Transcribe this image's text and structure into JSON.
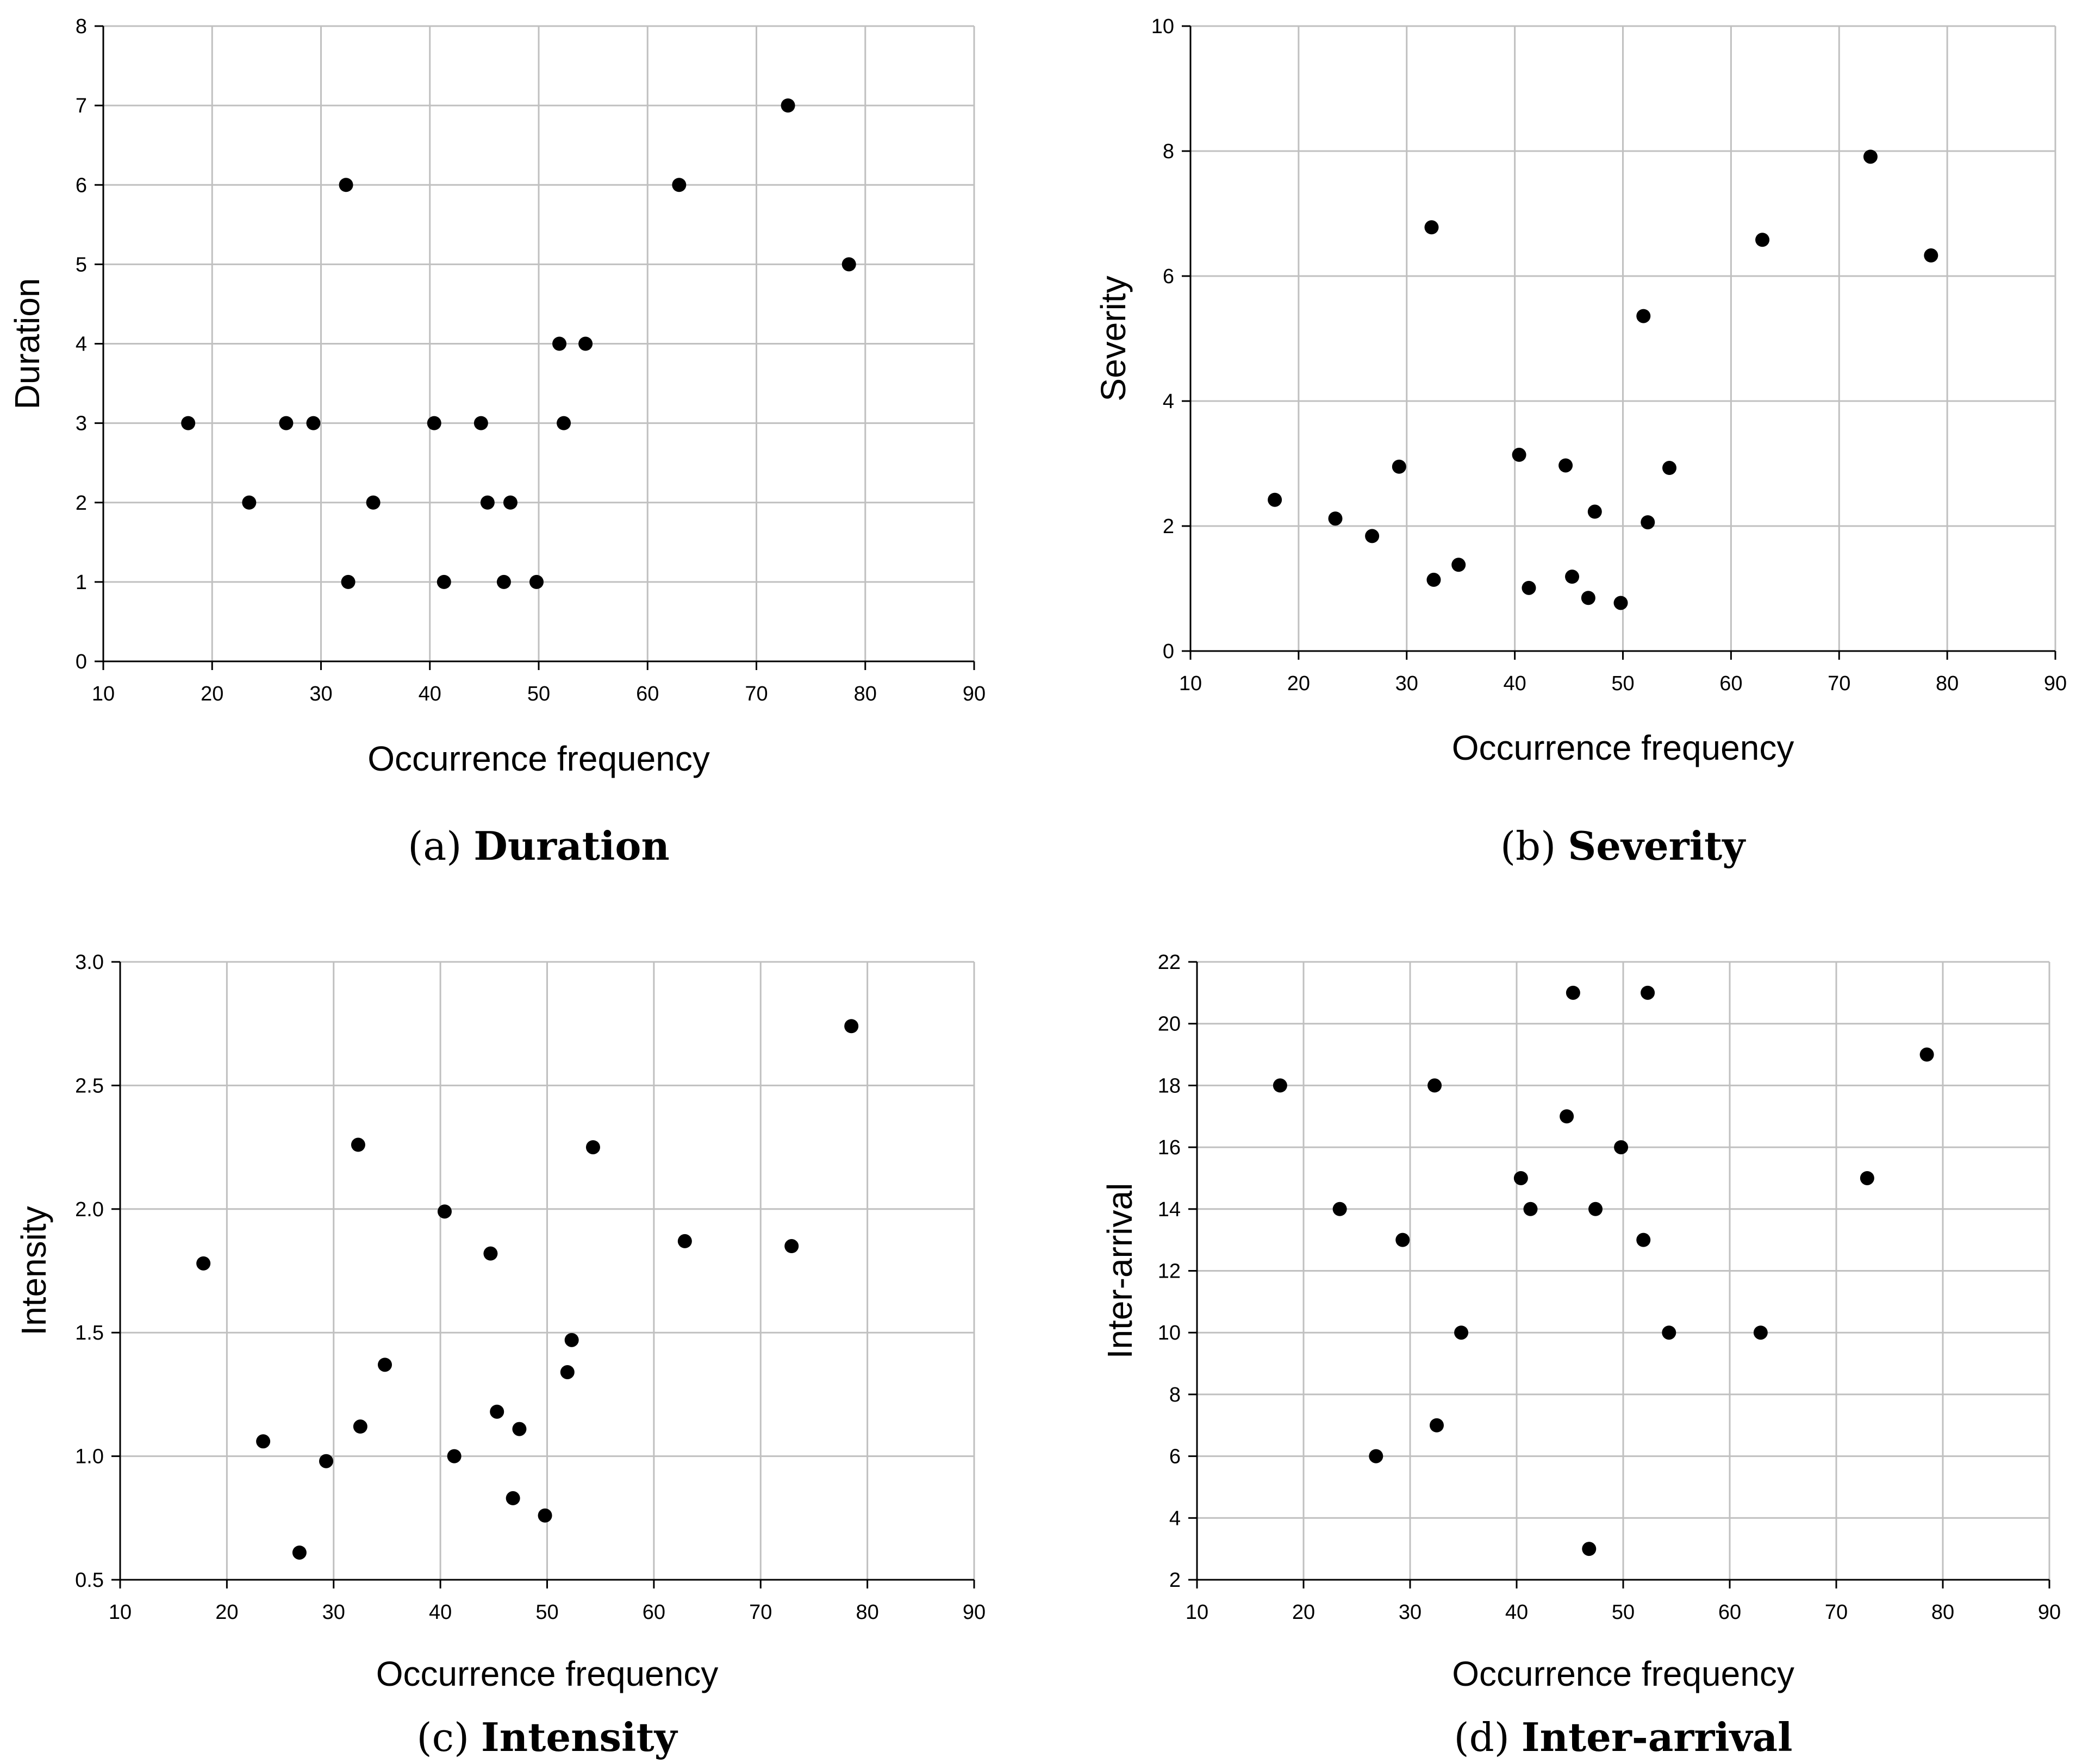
{
  "chart_data": [
    {
      "type": "scatter",
      "caption_label": "(a)",
      "caption_title": "Duration",
      "xlabel": "Occurrence frequency",
      "ylabel": "Duration",
      "xlim": [
        10,
        90
      ],
      "ylim": [
        0,
        8
      ],
      "xticks": [
        "10",
        "20",
        "30",
        "40",
        "50",
        "60",
        "70",
        "80",
        "90"
      ],
      "yticks": [
        "0",
        "1",
        "2",
        "3",
        "4",
        "5",
        "6",
        "7",
        "8"
      ],
      "grid": true,
      "marker_color": "#000000",
      "points": [
        {
          "x": 17.8,
          "y": 3
        },
        {
          "x": 23.4,
          "y": 2
        },
        {
          "x": 26.8,
          "y": 3
        },
        {
          "x": 29.3,
          "y": 3
        },
        {
          "x": 32.3,
          "y": 6
        },
        {
          "x": 32.5,
          "y": 1
        },
        {
          "x": 34.8,
          "y": 2
        },
        {
          "x": 40.4,
          "y": 3
        },
        {
          "x": 41.3,
          "y": 1
        },
        {
          "x": 44.7,
          "y": 3
        },
        {
          "x": 45.3,
          "y": 2
        },
        {
          "x": 46.8,
          "y": 1
        },
        {
          "x": 47.4,
          "y": 2
        },
        {
          "x": 49.8,
          "y": 1
        },
        {
          "x": 51.9,
          "y": 4
        },
        {
          "x": 52.3,
          "y": 3
        },
        {
          "x": 54.3,
          "y": 4
        },
        {
          "x": 62.9,
          "y": 6
        },
        {
          "x": 72.9,
          "y": 7
        },
        {
          "x": 78.5,
          "y": 5
        }
      ]
    },
    {
      "type": "scatter",
      "caption_label": "(b)",
      "caption_title": "Severity",
      "xlabel": "Occurrence frequency",
      "ylabel": "Severity",
      "xlim": [
        10,
        90
      ],
      "ylim": [
        0,
        10
      ],
      "xticks": [
        "10",
        "20",
        "30",
        "40",
        "50",
        "60",
        "70",
        "80",
        "90"
      ],
      "yticks": [
        "0",
        "2",
        "4",
        "6",
        "8",
        "10"
      ],
      "grid": true,
      "marker_color": "#000000",
      "points": [
        {
          "x": 17.8,
          "y": 2.42
        },
        {
          "x": 23.4,
          "y": 2.12
        },
        {
          "x": 26.8,
          "y": 1.84
        },
        {
          "x": 29.3,
          "y": 2.95
        },
        {
          "x": 32.3,
          "y": 6.78
        },
        {
          "x": 32.5,
          "y": 1.14
        },
        {
          "x": 34.8,
          "y": 1.38
        },
        {
          "x": 40.4,
          "y": 3.14
        },
        {
          "x": 41.3,
          "y": 1.01
        },
        {
          "x": 44.7,
          "y": 2.97
        },
        {
          "x": 45.3,
          "y": 1.19
        },
        {
          "x": 46.8,
          "y": 0.85
        },
        {
          "x": 47.4,
          "y": 2.23
        },
        {
          "x": 49.8,
          "y": 0.77
        },
        {
          "x": 51.9,
          "y": 5.36
        },
        {
          "x": 52.3,
          "y": 2.06
        },
        {
          "x": 54.3,
          "y": 2.93
        },
        {
          "x": 62.9,
          "y": 6.58
        },
        {
          "x": 72.9,
          "y": 7.91
        },
        {
          "x": 78.5,
          "y": 6.33
        }
      ]
    },
    {
      "type": "scatter",
      "caption_label": "(c)",
      "caption_title": "Intensity",
      "xlabel": "Occurrence frequency",
      "ylabel": "Intensity",
      "xlim": [
        10,
        90
      ],
      "ylim": [
        0.5,
        3.0
      ],
      "xticks": [
        "10",
        "20",
        "30",
        "40",
        "50",
        "60",
        "70",
        "80",
        "90"
      ],
      "yticks": [
        "0.5",
        "1.0",
        "1.5",
        "2.0",
        "2.5",
        "3.0"
      ],
      "grid": true,
      "marker_color": "#000000",
      "points": [
        {
          "x": 17.8,
          "y": 1.78
        },
        {
          "x": 23.4,
          "y": 1.06
        },
        {
          "x": 26.8,
          "y": 0.61
        },
        {
          "x": 29.3,
          "y": 0.98
        },
        {
          "x": 32.3,
          "y": 2.26
        },
        {
          "x": 32.5,
          "y": 1.12
        },
        {
          "x": 34.8,
          "y": 1.37
        },
        {
          "x": 40.4,
          "y": 1.99
        },
        {
          "x": 41.3,
          "y": 1.0
        },
        {
          "x": 44.7,
          "y": 1.82
        },
        {
          "x": 45.3,
          "y": 1.18
        },
        {
          "x": 46.8,
          "y": 0.83
        },
        {
          "x": 47.4,
          "y": 1.11
        },
        {
          "x": 49.8,
          "y": 0.76
        },
        {
          "x": 51.9,
          "y": 1.34
        },
        {
          "x": 52.3,
          "y": 1.47
        },
        {
          "x": 54.3,
          "y": 2.25
        },
        {
          "x": 62.9,
          "y": 1.87
        },
        {
          "x": 72.9,
          "y": 1.85
        },
        {
          "x": 78.5,
          "y": 2.74
        }
      ]
    },
    {
      "type": "scatter",
      "caption_label": "(d)",
      "caption_title": "Inter-arrival",
      "xlabel": "Occurrence frequency",
      "ylabel": "Inter-arrival",
      "xlim": [
        10,
        90
      ],
      "ylim": [
        2,
        22
      ],
      "xticks": [
        "10",
        "20",
        "30",
        "40",
        "50",
        "60",
        "70",
        "80",
        "90"
      ],
      "yticks": [
        "2",
        "4",
        "6",
        "8",
        "10",
        "12",
        "14",
        "16",
        "18",
        "20",
        "22"
      ],
      "grid": true,
      "marker_color": "#000000",
      "points": [
        {
          "x": 17.8,
          "y": 18
        },
        {
          "x": 23.4,
          "y": 14
        },
        {
          "x": 26.8,
          "y": 6
        },
        {
          "x": 29.3,
          "y": 13
        },
        {
          "x": 32.3,
          "y": 18
        },
        {
          "x": 32.5,
          "y": 7
        },
        {
          "x": 34.8,
          "y": 10
        },
        {
          "x": 40.4,
          "y": 15
        },
        {
          "x": 41.3,
          "y": 14
        },
        {
          "x": 44.7,
          "y": 17
        },
        {
          "x": 45.3,
          "y": 21
        },
        {
          "x": 46.8,
          "y": 3
        },
        {
          "x": 47.4,
          "y": 14
        },
        {
          "x": 49.8,
          "y": 16
        },
        {
          "x": 51.9,
          "y": 13
        },
        {
          "x": 52.3,
          "y": 21
        },
        {
          "x": 54.3,
          "y": 10
        },
        {
          "x": 62.9,
          "y": 10
        },
        {
          "x": 72.9,
          "y": 15
        },
        {
          "x": 78.5,
          "y": 19
        }
      ]
    }
  ]
}
